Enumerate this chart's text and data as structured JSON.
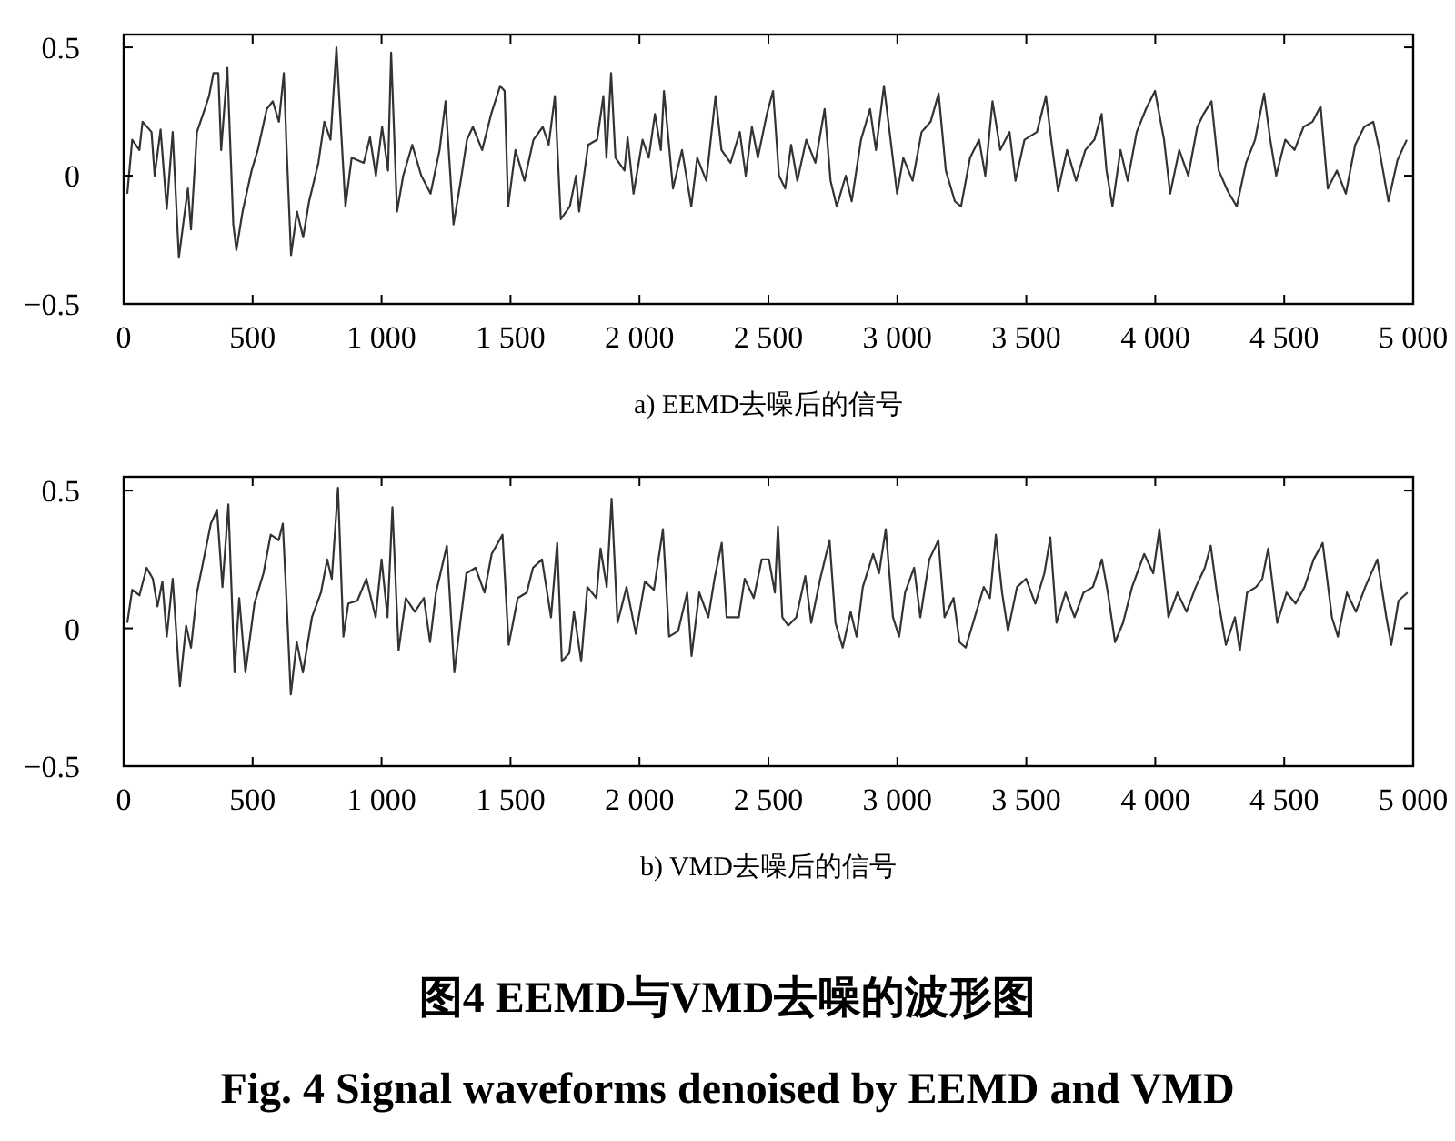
{
  "chart_data": [
    {
      "type": "line",
      "xlabel": "a)  EEMD去噪后的信号",
      "xlim": [
        0,
        5000
      ],
      "ylim": [
        -0.5,
        0.55
      ],
      "xticks": [
        {
          "value": 0,
          "label": "0"
        },
        {
          "value": 500,
          "label": "500"
        },
        {
          "value": 1000,
          "label": "1 000"
        },
        {
          "value": 1500,
          "label": "1 500"
        },
        {
          "value": 2000,
          "label": "2 000"
        },
        {
          "value": 2500,
          "label": "2 500"
        },
        {
          "value": 3000,
          "label": "3 000"
        },
        {
          "value": 3500,
          "label": "3 500"
        },
        {
          "value": 4000,
          "label": "4 000"
        },
        {
          "value": 4500,
          "label": "4 500"
        },
        {
          "value": 5000,
          "label": "5 000"
        }
      ],
      "yticks": [
        {
          "value": -0.5,
          "label": "−0.5"
        },
        {
          "value": 0,
          "label": "0"
        },
        {
          "value": 0.5,
          "label": "0.5"
        }
      ],
      "series": [
        {
          "color": "#333333",
          "x": [
            14,
            33,
            61,
            73,
            108,
            120,
            143,
            167,
            190,
            214,
            237,
            249,
            261,
            284,
            308,
            331,
            348,
            367,
            378,
            402,
            425,
            437,
            461,
            496,
            520,
            555,
            578,
            602,
            621,
            632,
            649,
            672,
            696,
            719,
            755,
            778,
            802,
            825,
            849,
            860,
            884,
            931,
            955,
            978,
            1002,
            1025,
            1037,
            1060,
            1084,
            1119,
            1154,
            1190,
            1225,
            1248,
            1279,
            1307,
            1331,
            1354,
            1390,
            1425,
            1460,
            1477,
            1491,
            1519,
            1554,
            1589,
            1625,
            1648,
            1672,
            1695,
            1730,
            1754,
            1766,
            1801,
            1836,
            1860,
            1872,
            1890,
            1907,
            1942,
            1954,
            1977,
            2012,
            2036,
            2060,
            2083,
            2095,
            2130,
            2165,
            2201,
            2224,
            2259,
            2295,
            2318,
            2353,
            2389,
            2412,
            2436,
            2459,
            2494,
            2518,
            2541,
            2565,
            2588,
            2612,
            2647,
            2682,
            2718,
            2741,
            2765,
            2800,
            2823,
            2859,
            2894,
            2917,
            2948,
            2976,
            2999,
            3023,
            3059,
            3094,
            3129,
            3160,
            3188,
            3223,
            3247,
            3282,
            3317,
            3341,
            3369,
            3399,
            3435,
            3458,
            3493,
            3541,
            3576,
            3599,
            3623,
            3658,
            3693,
            3729,
            3764,
            3792,
            3811,
            3834,
            3865,
            3893,
            3928,
            3964,
            3999,
            4034,
            4058,
            4093,
            4128,
            4163,
            4187,
            4218,
            4246,
            4281,
            4316,
            4352,
            4387,
            4422,
            4446,
            4469,
            4504,
            4540,
            4575,
            4610,
            4641,
            4669,
            4704,
            4739,
            4775,
            4810,
            4845,
            4869,
            4904,
            4939,
            4975
          ],
          "values": [
            -0.07,
            0.14,
            0.1,
            0.21,
            0.17,
            0.0,
            0.18,
            -0.13,
            0.17,
            -0.32,
            -0.14,
            -0.05,
            -0.21,
            0.17,
            0.24,
            0.31,
            0.4,
            0.4,
            0.1,
            0.42,
            -0.19,
            -0.29,
            -0.14,
            0.02,
            0.1,
            0.26,
            0.29,
            0.21,
            0.4,
            0.1,
            -0.31,
            -0.14,
            -0.24,
            -0.1,
            0.05,
            0.21,
            0.14,
            0.5,
            0.07,
            -0.12,
            0.07,
            0.05,
            0.15,
            0.0,
            0.19,
            0.02,
            0.48,
            -0.14,
            0.0,
            0.12,
            0.0,
            -0.07,
            0.1,
            0.29,
            -0.19,
            -0.02,
            0.14,
            0.19,
            0.1,
            0.24,
            0.35,
            0.33,
            -0.12,
            0.1,
            -0.02,
            0.14,
            0.19,
            0.12,
            0.31,
            -0.17,
            -0.12,
            0.0,
            -0.14,
            0.12,
            0.14,
            0.31,
            0.07,
            0.4,
            0.07,
            0.02,
            0.15,
            -0.07,
            0.14,
            0.07,
            0.24,
            0.1,
            0.33,
            -0.05,
            0.1,
            -0.12,
            0.07,
            -0.02,
            0.31,
            0.1,
            0.05,
            0.17,
            0.0,
            0.19,
            0.07,
            0.24,
            0.33,
            0.0,
            -0.05,
            0.12,
            -0.02,
            0.14,
            0.05,
            0.26,
            -0.02,
            -0.12,
            0.0,
            -0.1,
            0.14,
            0.26,
            0.1,
            0.35,
            0.12,
            -0.07,
            0.07,
            -0.02,
            0.17,
            0.21,
            0.32,
            0.02,
            -0.1,
            -0.12,
            0.07,
            0.14,
            0.0,
            0.29,
            0.1,
            0.17,
            -0.02,
            0.14,
            0.17,
            0.31,
            0.12,
            -0.06,
            0.1,
            -0.02,
            0.1,
            0.14,
            0.24,
            0.02,
            -0.12,
            0.1,
            -0.02,
            0.17,
            0.26,
            0.33,
            0.14,
            -0.07,
            0.1,
            0.0,
            0.19,
            0.24,
            0.29,
            0.02,
            -0.06,
            -0.12,
            0.05,
            0.14,
            0.32,
            0.14,
            0.0,
            0.14,
            0.1,
            0.19,
            0.21,
            0.27,
            -0.05,
            0.02,
            -0.07,
            0.12,
            0.19,
            0.21,
            0.1,
            -0.1,
            0.06,
            0.14
          ]
        }
      ]
    },
    {
      "type": "line",
      "xlabel": "b)  VMD去噪后的信号",
      "xlim": [
        0,
        5000
      ],
      "ylim": [
        -0.5,
        0.55
      ],
      "xticks": [
        {
          "value": 0,
          "label": "0"
        },
        {
          "value": 500,
          "label": "500"
        },
        {
          "value": 1000,
          "label": "1 000"
        },
        {
          "value": 1500,
          "label": "1 500"
        },
        {
          "value": 2000,
          "label": "2 000"
        },
        {
          "value": 2500,
          "label": "2 500"
        },
        {
          "value": 3000,
          "label": "3 000"
        },
        {
          "value": 3500,
          "label": "3 500"
        },
        {
          "value": 4000,
          "label": "4 000"
        },
        {
          "value": 4500,
          "label": "4 500"
        },
        {
          "value": 5000,
          "label": "5 000"
        }
      ],
      "yticks": [
        {
          "value": -0.5,
          "label": "−0.5"
        },
        {
          "value": 0,
          "label": "0"
        },
        {
          "value": 0.5,
          "label": "0.5"
        }
      ],
      "annotations": [
        "图4  EEMD与VMD去噪的波形图",
        "Fig. 4  Signal waveforms denoised by EEMD and VMD"
      ],
      "series": [
        {
          "color": "#333333",
          "x": [
            14,
            33,
            61,
            89,
            113,
            131,
            150,
            167,
            190,
            218,
            242,
            261,
            284,
            308,
            338,
            362,
            383,
            406,
            430,
            448,
            472,
            507,
            542,
            570,
            601,
            617,
            631,
            648,
            671,
            695,
            730,
            765,
            789,
            807,
            831,
            852,
            871,
            906,
            941,
            977,
            1000,
            1023,
            1042,
            1066,
            1094,
            1129,
            1164,
            1188,
            1211,
            1253,
            1282,
            1305,
            1329,
            1364,
            1399,
            1427,
            1469,
            1493,
            1528,
            1563,
            1587,
            1622,
            1657,
            1681,
            1699,
            1728,
            1746,
            1774,
            1798,
            1833,
            1849,
            1873,
            1892,
            1915,
            1950,
            1986,
            2021,
            2056,
            2091,
            2115,
            2150,
            2185,
            2202,
            2232,
            2267,
            2291,
            2319,
            2338,
            2385,
            2408,
            2443,
            2474,
            2502,
            2525,
            2537,
            2554,
            2577,
            2608,
            2643,
            2666,
            2701,
            2737,
            2760,
            2788,
            2819,
            2842,
            2866,
            2906,
            2929,
            2955,
            2983,
            3007,
            3030,
            3065,
            3089,
            3124,
            3159,
            3183,
            3218,
            3241,
            3265,
            3300,
            3335,
            3359,
            3382,
            3406,
            3429,
            3464,
            3499,
            3535,
            3570,
            3593,
            3617,
            3652,
            3687,
            3722,
            3758,
            3793,
            3816,
            3844,
            3875,
            3910,
            3957,
            3992,
            4016,
            4051,
            4086,
            4121,
            4157,
            4192,
            4215,
            4239,
            4274,
            4309,
            4328,
            4356,
            4391,
            4415,
            4438,
            4473,
            4509,
            4544,
            4579,
            4614,
            4649,
            4685,
            4708,
            4743,
            4778,
            4814,
            4861,
            4896,
            4915,
            4943,
            4978
          ],
          "values": [
            0.02,
            0.14,
            0.12,
            0.22,
            0.18,
            0.08,
            0.17,
            -0.03,
            0.18,
            -0.21,
            0.01,
            -0.07,
            0.13,
            0.24,
            0.38,
            0.43,
            0.15,
            0.45,
            -0.16,
            0.11,
            -0.16,
            0.09,
            0.2,
            0.34,
            0.32,
            0.38,
            0.11,
            -0.24,
            -0.05,
            -0.16,
            0.04,
            0.13,
            0.25,
            0.18,
            0.51,
            -0.03,
            0.09,
            0.1,
            0.18,
            0.04,
            0.25,
            0.04,
            0.44,
            -0.08,
            0.11,
            0.06,
            0.11,
            -0.05,
            0.13,
            0.3,
            -0.16,
            0.02,
            0.2,
            0.22,
            0.13,
            0.27,
            0.34,
            -0.06,
            0.11,
            0.13,
            0.22,
            0.25,
            0.04,
            0.31,
            -0.12,
            -0.09,
            0.06,
            -0.12,
            0.15,
            0.11,
            0.29,
            0.15,
            0.47,
            0.02,
            0.15,
            -0.02,
            0.17,
            0.14,
            0.36,
            -0.03,
            -0.01,
            0.13,
            -0.1,
            0.13,
            0.04,
            0.18,
            0.31,
            0.04,
            0.04,
            0.18,
            0.11,
            0.25,
            0.25,
            0.13,
            0.37,
            0.04,
            0.01,
            0.04,
            0.19,
            0.02,
            0.18,
            0.32,
            0.02,
            -0.07,
            0.06,
            -0.03,
            0.15,
            0.27,
            0.2,
            0.36,
            0.04,
            -0.03,
            0.13,
            0.22,
            0.04,
            0.25,
            0.32,
            0.04,
            0.11,
            -0.05,
            -0.07,
            0.04,
            0.15,
            0.11,
            0.34,
            0.13,
            -0.01,
            0.15,
            0.18,
            0.09,
            0.2,
            0.33,
            0.02,
            0.13,
            0.04,
            0.13,
            0.15,
            0.25,
            0.13,
            -0.05,
            0.02,
            0.15,
            0.27,
            0.2,
            0.36,
            0.04,
            0.13,
            0.06,
            0.15,
            0.22,
            0.3,
            0.13,
            -0.06,
            0.04,
            -0.08,
            0.13,
            0.15,
            0.18,
            0.29,
            0.02,
            0.13,
            0.09,
            0.15,
            0.25,
            0.31,
            0.04,
            -0.03,
            0.13,
            0.06,
            0.15,
            0.25,
            0.04,
            -0.06,
            0.1,
            0.13
          ]
        }
      ]
    }
  ]
}
